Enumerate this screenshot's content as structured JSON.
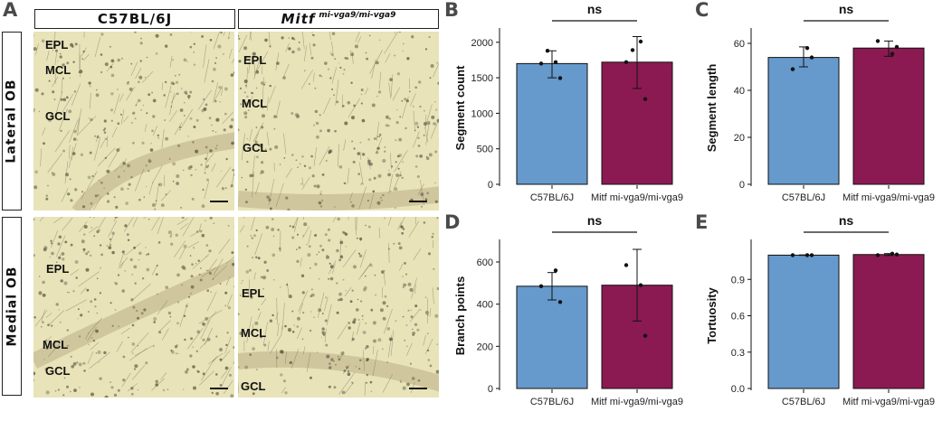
{
  "panel_labels": {
    "a": "A",
    "b": "B",
    "c": "C",
    "d": "D",
    "e": "E"
  },
  "figure_a": {
    "col1_title": "C57BL/6J",
    "col2_title": "Mitf",
    "col2_superscript": "mi-vga9/mi-vga9",
    "row1_title": "Lateral OB",
    "row2_title": "Medial OB",
    "layer_labels": {
      "epl": "EPL",
      "mcl": "MCL",
      "gcl": "GCL"
    }
  },
  "colors": {
    "wt": "#6699cc",
    "mut": "#8b1a52",
    "tissue": "#e8e3b8"
  },
  "chart_data": [
    {
      "id": "B",
      "type": "bar",
      "categories": [
        "C57BL/6J",
        "Mitf mi-vga9/mi-vga9"
      ],
      "values": [
        1700,
        1720
      ],
      "errors": [
        [
          1500,
          1880
        ],
        [
          1350,
          2080
        ]
      ],
      "points": [
        [
          1700,
          1720,
          1495,
          1880
        ],
        [
          1720,
          2010,
          1200,
          1890
        ]
      ],
      "ylabel": "Segment count",
      "ylim": [
        0,
        2150
      ],
      "yticks": [
        0,
        500,
        1000,
        1500,
        2000
      ],
      "significance": "ns"
    },
    {
      "id": "C",
      "type": "bar",
      "categories": [
        "C57BL/6J",
        "Mitf mi-vga9/mi-vga9"
      ],
      "values": [
        54,
        58
      ],
      "errors": [
        [
          50,
          58.5
        ],
        [
          54.5,
          61
        ]
      ],
      "points": [
        [
          49,
          58,
          54
        ],
        [
          61,
          55.5,
          58.5
        ]
      ],
      "ylabel": "Segment length",
      "ylim": [
        0,
        65
      ],
      "yticks": [
        0,
        20,
        40,
        60
      ],
      "significance": "ns"
    },
    {
      "id": "D",
      "type": "bar",
      "categories": [
        "C57BL/6J",
        "Mitf mi-vga9/mi-vga9"
      ],
      "values": [
        485,
        490
      ],
      "errors": [
        [
          420,
          550
        ],
        [
          320,
          660
        ]
      ],
      "points": [
        [
          485,
          560,
          410
        ],
        [
          585,
          490,
          250
        ]
      ],
      "ylabel": "Branch points",
      "ylim": [
        0,
        690
      ],
      "yticks": [
        0,
        200,
        400,
        600
      ],
      "significance": "ns"
    },
    {
      "id": "E",
      "type": "bar",
      "categories": [
        "C57BL/6J",
        "Mitf mi-vga9/mi-vga9"
      ],
      "values": [
        1.1,
        1.105
      ],
      "errors": [
        [
          1.098,
          1.102
        ],
        [
          1.097,
          1.113
        ]
      ],
      "points": [
        [
          1.1,
          1.1,
          1.1
        ],
        [
          1.1,
          1.112,
          1.105
        ]
      ],
      "ylabel": "Tortuosity",
      "ylim": [
        0,
        1.2
      ],
      "yticks": [
        0.0,
        0.3,
        0.6,
        0.9
      ],
      "ytick_labels": [
        "0.0",
        "0.3",
        "0.6",
        "0.9"
      ],
      "significance": "ns"
    }
  ]
}
